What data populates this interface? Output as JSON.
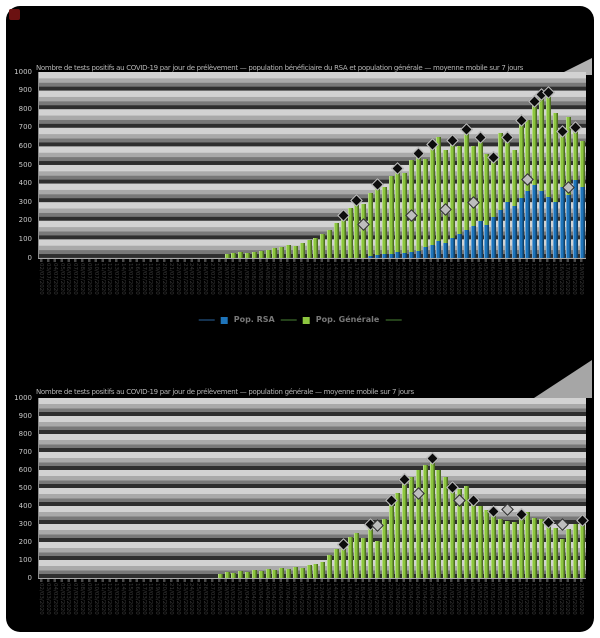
{
  "page": {
    "background": "#ffffff",
    "canvas_color": "#000000"
  },
  "colors": {
    "rsa_blue": "#1E74BA",
    "generale_green": "#8DC63F",
    "marker_dark": "#0d0d0d",
    "marker_light": "#bdbdbd"
  },
  "legend": {
    "items": [
      {
        "label": "Pop. RSA",
        "color": "#1E74BA"
      },
      {
        "label": "Pop. Générale",
        "color": "#8DC63F"
      }
    ]
  },
  "chart_data": [
    {
      "type": "bar",
      "stacked": true,
      "title": "Nombre de tests positifs au COVID-19 par jour de prélèvement — population bénéficiaire du RSA et population générale — moyenne mobile sur 7 jours",
      "ylim": [
        0,
        1000
      ],
      "ytick_step": 100,
      "yticks": [
        "1000",
        "900",
        "800",
        "700",
        "600",
        "500",
        "400",
        "300",
        "200",
        "100",
        "0"
      ],
      "grid": "striped",
      "legend_position": "bottom-center",
      "categories": [
        "02/07/2020",
        "03/07/2020",
        "04/07/2020",
        "05/07/2020",
        "06/07/2020",
        "07/07/2020",
        "08/07/2020",
        "09/07/2020",
        "10/07/2020",
        "11/07/2020",
        "12/07/2020",
        "13/07/2020",
        "14/07/2020",
        "15/07/2020",
        "16/07/2020",
        "17/07/2020",
        "18/07/2020",
        "19/07/2020",
        "20/07/2020",
        "21/07/2020",
        "22/07/2020",
        "23/07/2020",
        "24/07/2020",
        "25/07/2020",
        "26/07/2020",
        "27/07/2020",
        "28/07/2020",
        "29/07/2020",
        "30/07/2020",
        "31/07/2020",
        "01/08/2020",
        "02/08/2020",
        "03/08/2020",
        "04/08/2020",
        "05/08/2020",
        "06/08/2020",
        "07/08/2020",
        "08/08/2020",
        "09/08/2020",
        "10/08/2020",
        "11/08/2020",
        "12/08/2020",
        "13/08/2020",
        "14/08/2020",
        "15/08/2020",
        "16/08/2020",
        "17/08/2020",
        "18/08/2020",
        "19/08/2020",
        "20/08/2020",
        "21/08/2020",
        "22/08/2020",
        "23/08/2020",
        "24/08/2020",
        "25/08/2020",
        "26/08/2020",
        "27/08/2020",
        "28/08/2020",
        "29/08/2020",
        "30/08/2020",
        "31/08/2020",
        "01/09/2020",
        "02/09/2020",
        "03/09/2020",
        "04/09/2020",
        "05/09/2020",
        "06/09/2020",
        "07/09/2020",
        "08/09/2020",
        "09/09/2020",
        "10/09/2020",
        "11/09/2020",
        "12/09/2020",
        "13/09/2020",
        "14/09/2020",
        "15/09/2020",
        "16/09/2020",
        "17/09/2020",
        "18/09/2020",
        "19/09/2020"
      ],
      "series": [
        {
          "name": "Pop. RSA",
          "color": "#1E74BA",
          "values": [
            0,
            0,
            0,
            0,
            0,
            0,
            0,
            0,
            0,
            0,
            0,
            0,
            0,
            0,
            0,
            0,
            0,
            0,
            0,
            0,
            0,
            0,
            0,
            0,
            0,
            0,
            0,
            0,
            0,
            0,
            0,
            0,
            0,
            0,
            0,
            0,
            0,
            0,
            0,
            0,
            0,
            0,
            0,
            0,
            0,
            0,
            0,
            0,
            10,
            15,
            20,
            20,
            30,
            25,
            35,
            40,
            60,
            70,
            90,
            80,
            110,
            130,
            150,
            170,
            200,
            180,
            220,
            260,
            300,
            280,
            320,
            360,
            390,
            360,
            330,
            300,
            380,
            340,
            420,
            380
          ]
        },
        {
          "name": "Pop. Générale",
          "color": "#8DC63F",
          "values": [
            0,
            0,
            0,
            0,
            0,
            0,
            0,
            0,
            0,
            0,
            0,
            0,
            0,
            0,
            0,
            0,
            0,
            0,
            0,
            0,
            0,
            0,
            0,
            0,
            0,
            0,
            0,
            20,
            25,
            30,
            25,
            35,
            40,
            45,
            55,
            60,
            70,
            65,
            80,
            95,
            110,
            130,
            150,
            190,
            230,
            270,
            310,
            290,
            340,
            380,
            360,
            420,
            450,
            430,
            490,
            520,
            470,
            540,
            560,
            500,
            520,
            470,
            540,
            430,
            450,
            380,
            320,
            410,
            350,
            300,
            420,
            380,
            450,
            520,
            560,
            480,
            300,
            420,
            280,
            250
          ]
        }
      ],
      "markers": [
        {
          "i": 44,
          "v": 230,
          "shade": "dark"
        },
        {
          "i": 46,
          "v": 310,
          "shade": "dark"
        },
        {
          "i": 47,
          "v": 180,
          "shade": "light"
        },
        {
          "i": 49,
          "v": 395,
          "shade": "dark"
        },
        {
          "i": 52,
          "v": 480,
          "shade": "dark"
        },
        {
          "i": 54,
          "v": 230,
          "shade": "light"
        },
        {
          "i": 55,
          "v": 560,
          "shade": "dark"
        },
        {
          "i": 57,
          "v": 610,
          "shade": "dark"
        },
        {
          "i": 59,
          "v": 260,
          "shade": "light"
        },
        {
          "i": 60,
          "v": 630,
          "shade": "dark"
        },
        {
          "i": 62,
          "v": 690,
          "shade": "dark"
        },
        {
          "i": 63,
          "v": 300,
          "shade": "light"
        },
        {
          "i": 64,
          "v": 650,
          "shade": "dark"
        },
        {
          "i": 66,
          "v": 540,
          "shade": "dark"
        },
        {
          "i": 68,
          "v": 650,
          "shade": "dark"
        },
        {
          "i": 70,
          "v": 740,
          "shade": "dark"
        },
        {
          "i": 71,
          "v": 420,
          "shade": "light"
        },
        {
          "i": 72,
          "v": 840,
          "shade": "dark"
        },
        {
          "i": 73,
          "v": 880,
          "shade": "dark"
        },
        {
          "i": 74,
          "v": 890,
          "shade": "dark"
        },
        {
          "i": 76,
          "v": 680,
          "shade": "dark"
        },
        {
          "i": 77,
          "v": 380,
          "shade": "light"
        },
        {
          "i": 78,
          "v": 700,
          "shade": "dark"
        }
      ]
    },
    {
      "type": "bar",
      "stacked": false,
      "title": "Nombre de tests positifs au COVID-19 par jour de prélèvement — population générale — moyenne mobile sur 7 jours",
      "ylim": [
        0,
        1000
      ],
      "ytick_step": 100,
      "yticks": [
        "1000",
        "900",
        "800",
        "700",
        "600",
        "500",
        "400",
        "300",
        "200",
        "100",
        "0"
      ],
      "grid": "striped",
      "categories": [
        "02/03/2020",
        "03/03/2020",
        "04/03/2020",
        "05/03/2020",
        "06/03/2020",
        "07/03/2020",
        "08/03/2020",
        "09/03/2020",
        "10/03/2020",
        "11/03/2020",
        "12/03/2020",
        "13/03/2020",
        "14/03/2020",
        "15/03/2020",
        "16/03/2020",
        "17/03/2020",
        "18/03/2020",
        "19/03/2020",
        "20/03/2020",
        "21/03/2020",
        "22/03/2020",
        "23/03/2020",
        "24/03/2020",
        "25/03/2020",
        "26/03/2020",
        "27/03/2020",
        "28/03/2020",
        "29/03/2020",
        "30/03/2020",
        "31/03/2020",
        "01/04/2020",
        "02/04/2020",
        "03/04/2020",
        "04/04/2020",
        "05/04/2020",
        "06/04/2020",
        "07/04/2020",
        "08/04/2020",
        "09/04/2020",
        "10/04/2020",
        "11/04/2020",
        "12/04/2020",
        "13/04/2020",
        "14/04/2020",
        "15/04/2020",
        "16/04/2020",
        "17/04/2020",
        "18/04/2020",
        "19/04/2020",
        "20/04/2020",
        "21/04/2020",
        "22/04/2020",
        "23/04/2020",
        "24/04/2020",
        "25/04/2020",
        "26/04/2020",
        "27/04/2020",
        "28/04/2020",
        "29/04/2020",
        "30/04/2020",
        "01/05/2020",
        "02/05/2020",
        "03/05/2020",
        "04/05/2020",
        "05/05/2020",
        "06/05/2020",
        "07/05/2020",
        "08/05/2020",
        "09/05/2020",
        "10/05/2020",
        "11/05/2020",
        "12/05/2020",
        "13/05/2020",
        "14/05/2020",
        "15/05/2020",
        "16/05/2020",
        "17/05/2020",
        "18/05/2020",
        "19/05/2020",
        "20/05/2020"
      ],
      "series": [
        {
          "name": "Pop. Générale",
          "color": "#8DC63F",
          "values": [
            0,
            0,
            0,
            0,
            0,
            0,
            0,
            0,
            0,
            0,
            0,
            0,
            0,
            0,
            0,
            0,
            0,
            0,
            0,
            0,
            0,
            0,
            0,
            0,
            0,
            0,
            25,
            35,
            30,
            40,
            35,
            45,
            40,
            50,
            45,
            55,
            50,
            60,
            55,
            70,
            80,
            90,
            130,
            160,
            185,
            230,
            250,
            225,
            300,
            205,
            330,
            430,
            470,
            545,
            560,
            600,
            630,
            665,
            600,
            560,
            505,
            495,
            510,
            430,
            400,
            380,
            370,
            330,
            315,
            310,
            355,
            365,
            335,
            330,
            310,
            280,
            215,
            270,
            300,
            320
          ]
        }
      ],
      "markers": [
        {
          "i": 44,
          "v": 185,
          "shade": "dark"
        },
        {
          "i": 48,
          "v": 300,
          "shade": "dark"
        },
        {
          "i": 49,
          "v": 290,
          "shade": "light"
        },
        {
          "i": 51,
          "v": 430,
          "shade": "dark"
        },
        {
          "i": 53,
          "v": 545,
          "shade": "dark"
        },
        {
          "i": 55,
          "v": 470,
          "shade": "light"
        },
        {
          "i": 57,
          "v": 665,
          "shade": "dark"
        },
        {
          "i": 60,
          "v": 505,
          "shade": "dark"
        },
        {
          "i": 61,
          "v": 430,
          "shade": "light"
        },
        {
          "i": 63,
          "v": 430,
          "shade": "dark"
        },
        {
          "i": 66,
          "v": 370,
          "shade": "dark"
        },
        {
          "i": 68,
          "v": 380,
          "shade": "light"
        },
        {
          "i": 70,
          "v": 355,
          "shade": "dark"
        },
        {
          "i": 74,
          "v": 310,
          "shade": "dark"
        },
        {
          "i": 76,
          "v": 300,
          "shade": "light"
        },
        {
          "i": 79,
          "v": 320,
          "shade": "dark"
        }
      ]
    }
  ]
}
